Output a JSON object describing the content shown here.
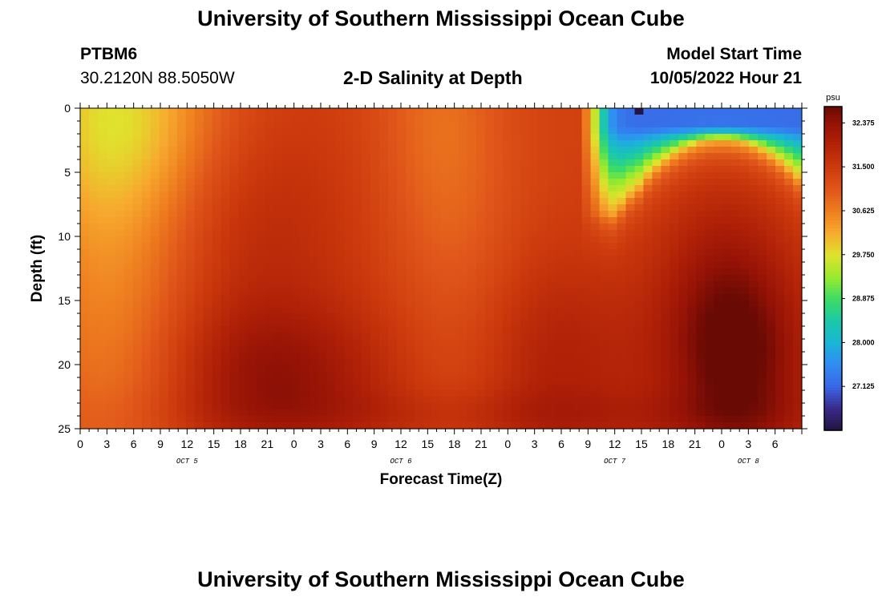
{
  "page": {
    "title": "University of Southern Mississippi Ocean Cube",
    "footer_title": "University of Southern Mississippi Ocean Cube"
  },
  "header": {
    "station_id": "PTBM6",
    "station_coords": "30.2120N  88.5050W",
    "plot_title": "2-D Salinity at Depth",
    "model_start_label": "Model Start Time",
    "model_start_value": "10/05/2022 Hour 21"
  },
  "chart_data": {
    "type": "heatmap",
    "title": "2-D Salinity at Depth",
    "xlabel": "Forecast Time(Z)",
    "ylabel": "Depth (ft)",
    "x_hours_since_start": [
      0,
      81
    ],
    "x_start_hour_z": 0,
    "ylim": [
      0,
      25
    ],
    "y_ticks": [
      0,
      5,
      10,
      15,
      20,
      25
    ],
    "x_tick_labels": [
      "0",
      "3",
      "6",
      "9",
      "12",
      "15",
      "18",
      "21",
      "0",
      "3",
      "6",
      "9",
      "12",
      "15",
      "18",
      "21",
      "0",
      "3",
      "6",
      "9",
      "12",
      "15",
      "18",
      "21",
      "0",
      "3",
      "6"
    ],
    "date_labels": [
      {
        "label": "OCT 5",
        "hour": 12
      },
      {
        "label": "OCT 6",
        "hour": 36
      },
      {
        "label": "OCT 7",
        "hour": 60
      },
      {
        "label": "OCT 8",
        "hour": 75
      }
    ],
    "colorbar": {
      "unit": "psu",
      "min": 26.25,
      "max": 32.7,
      "tick_labels": [
        "32.375",
        "31.500",
        "30.625",
        "29.750",
        "28.875",
        "28.000",
        "27.125"
      ],
      "tick_values": [
        32.375,
        31.5,
        30.625,
        29.75,
        28.875,
        28.0,
        27.125
      ],
      "colors": [
        {
          "v": 26.25,
          "c": "#22143f"
        },
        {
          "v": 26.7,
          "c": "#3a2a8c"
        },
        {
          "v": 27.125,
          "c": "#3a66e6"
        },
        {
          "v": 27.6,
          "c": "#2f8ff2"
        },
        {
          "v": 28.0,
          "c": "#1ab5d7"
        },
        {
          "v": 28.45,
          "c": "#1cc9a5"
        },
        {
          "v": 28.875,
          "c": "#3ddc64"
        },
        {
          "v": 29.3,
          "c": "#98ea2e"
        },
        {
          "v": 29.75,
          "c": "#e0e22d"
        },
        {
          "v": 30.2,
          "c": "#f7a92e"
        },
        {
          "v": 30.625,
          "c": "#ee7d1f"
        },
        {
          "v": 31.05,
          "c": "#e0561a"
        },
        {
          "v": 31.5,
          "c": "#cd3a0d"
        },
        {
          "v": 31.95,
          "c": "#b22207"
        },
        {
          "v": 32.375,
          "c": "#951206"
        },
        {
          "v": 32.7,
          "c": "#6a0a04"
        }
      ]
    },
    "salinity_field": {
      "base": 31.4,
      "features": [
        {
          "t": 5,
          "d": 0,
          "st": 8,
          "sd": 6,
          "a": -1.1
        },
        {
          "t": 6,
          "d": 14,
          "st": 6,
          "sd": 14,
          "a": -0.6
        },
        {
          "t": 0,
          "d": 10,
          "st": 5,
          "sd": 14,
          "a": -0.4
        },
        {
          "t": 22,
          "d": 21,
          "st": 9,
          "sd": 4,
          "a": 0.9
        },
        {
          "t": 20,
          "d": 10,
          "st": 8,
          "sd": 7,
          "a": 0.4
        },
        {
          "t": 40,
          "d": 0,
          "st": 5,
          "sd": 8,
          "a": -0.5
        },
        {
          "t": 43,
          "d": 16,
          "st": 5,
          "sd": 12,
          "a": -0.35
        },
        {
          "t": 53,
          "d": 20,
          "st": 8,
          "sd": 6,
          "a": 0.6
        },
        {
          "t": 74,
          "d": 20,
          "st": 6,
          "sd": 6,
          "a": 1.2
        },
        {
          "t": 72,
          "d": 13,
          "st": 5,
          "sd": 6,
          "a": 0.5
        },
        {
          "t": 48,
          "d": 24,
          "st": 30,
          "sd": 1.5,
          "a": 0.3
        }
      ],
      "fresh_lens": {
        "t_start": 56.5,
        "surface_anomaly": -4.2,
        "surface_plateau_depth": 1.5,
        "center_t": 72,
        "min_depth": 2.5,
        "max_depth": 8.2,
        "width": 12,
        "tail_start": 63,
        "tail_depth": 6
      },
      "min_spot": {
        "t": 62.5,
        "d": 0,
        "value": 26.3
      }
    }
  }
}
